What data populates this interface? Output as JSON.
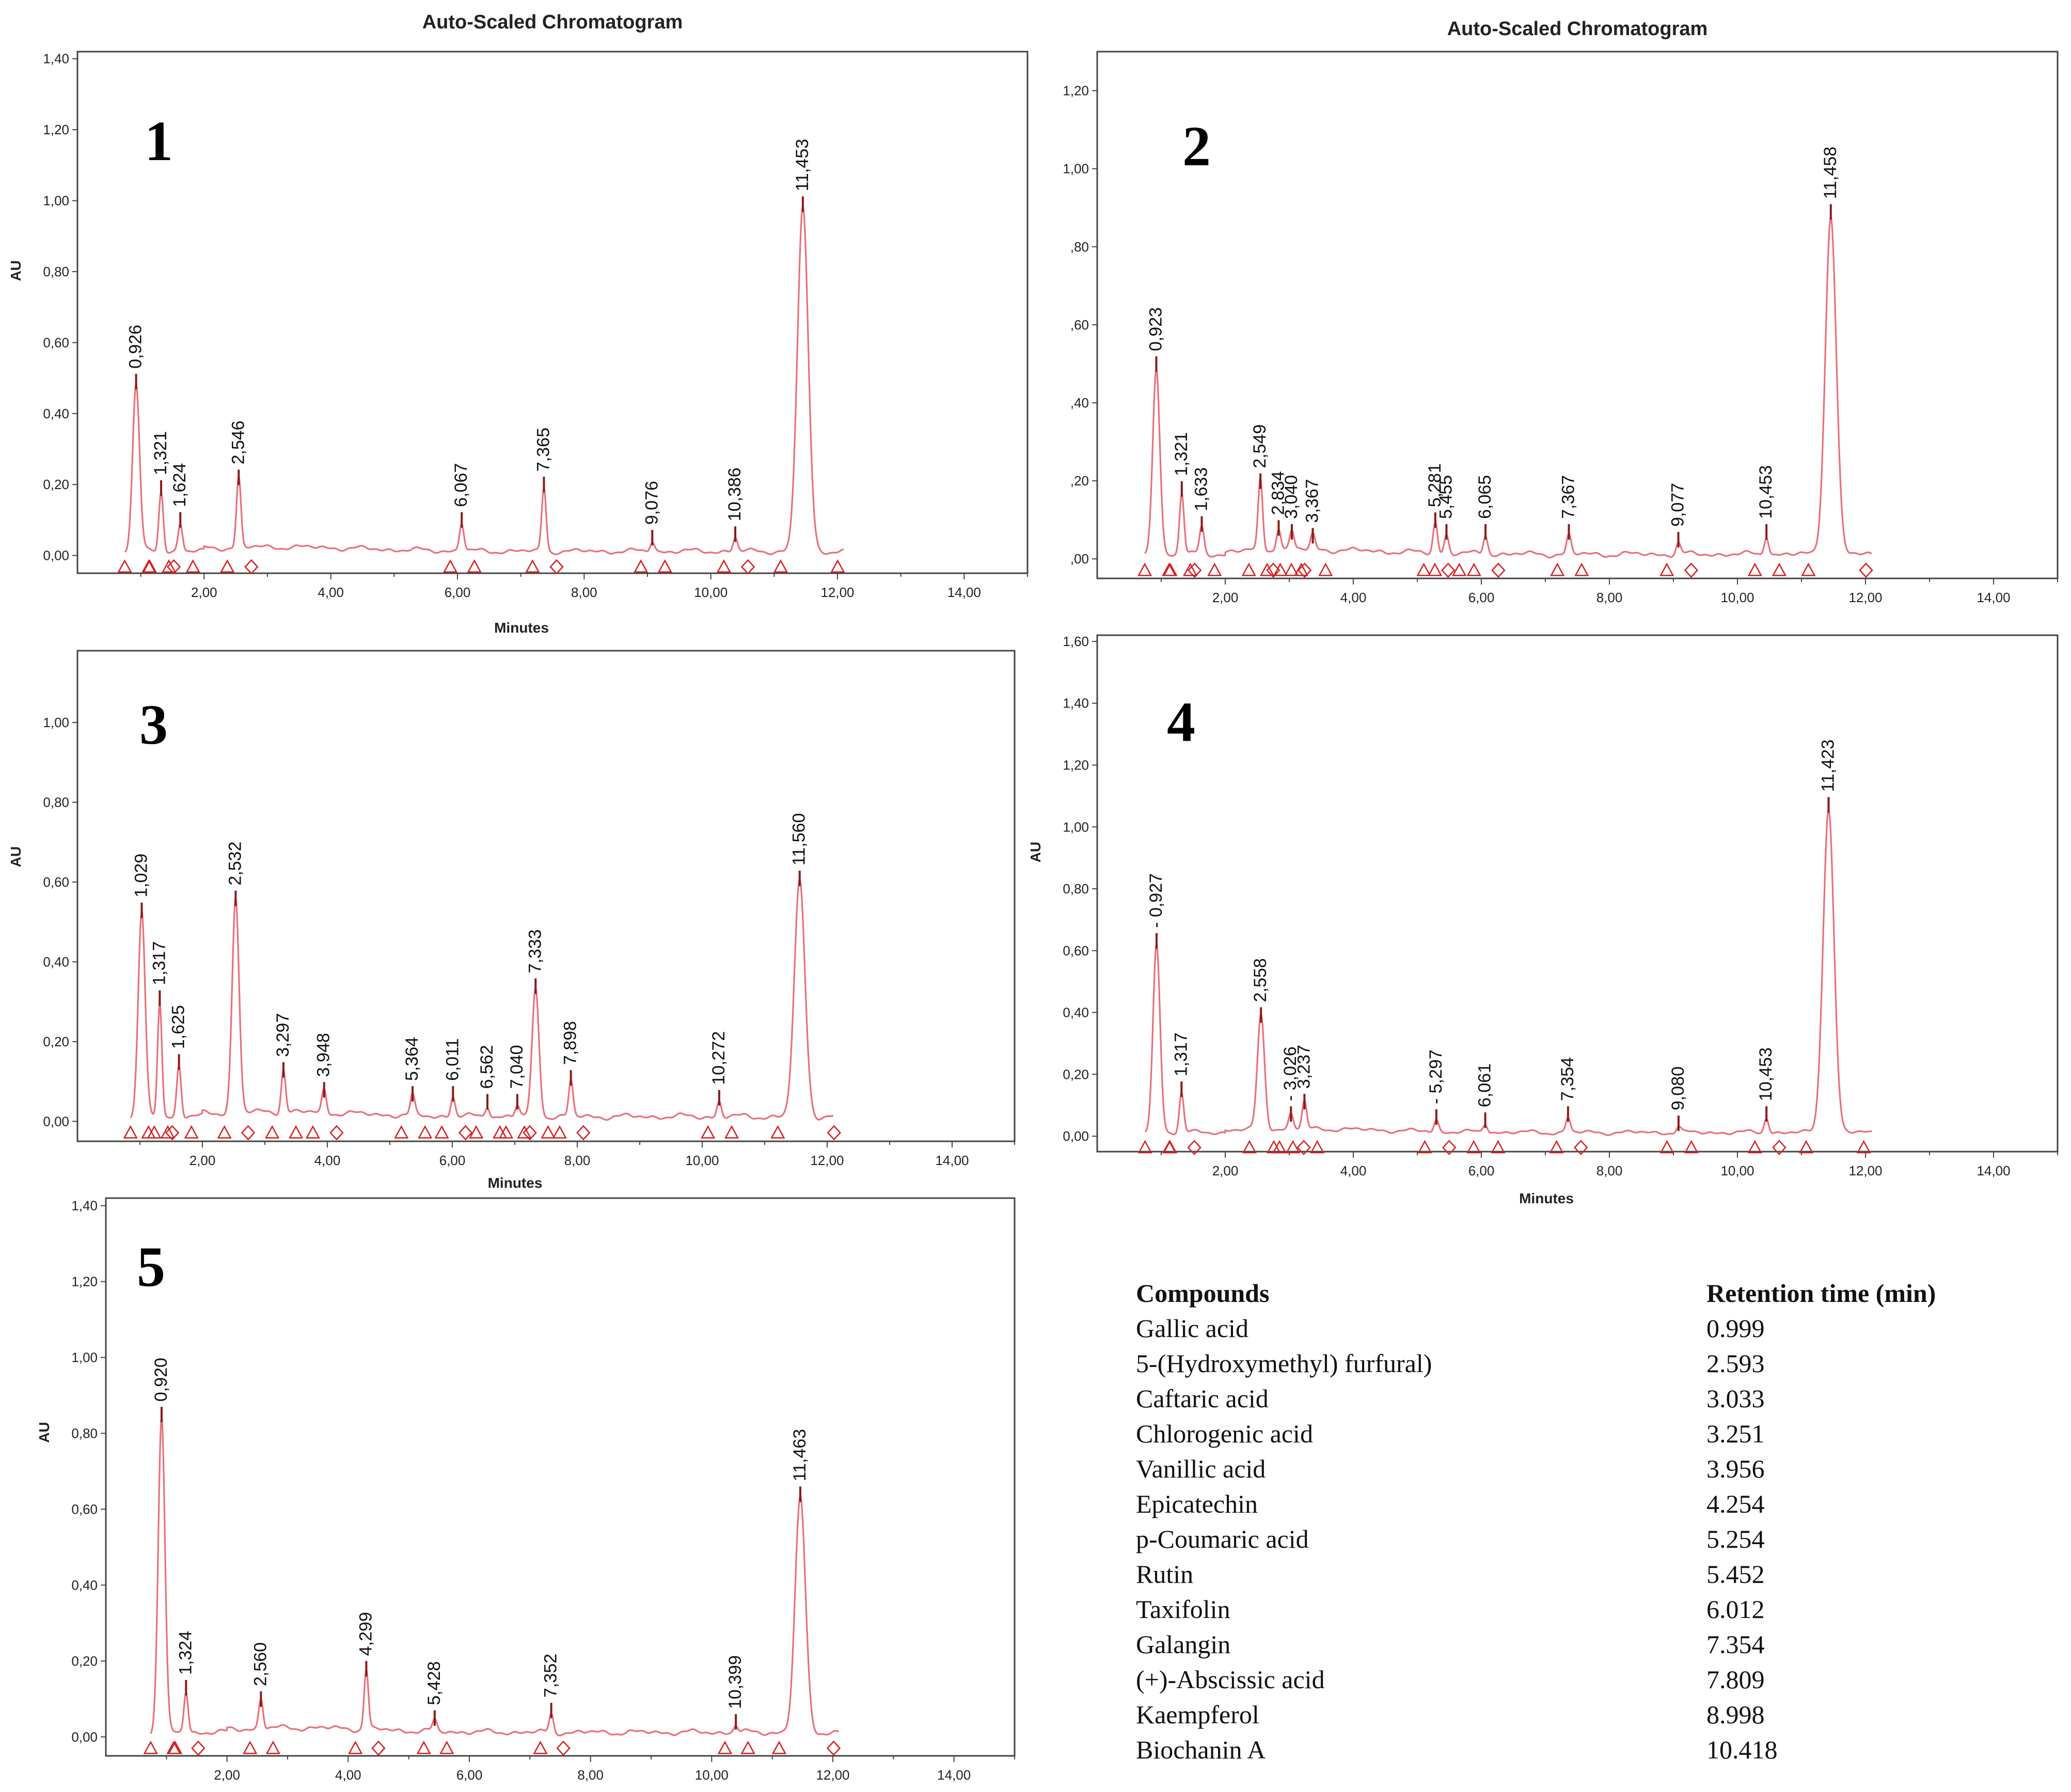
{
  "colors": {
    "trace": "#e8707a",
    "marker": "#d62020",
    "peak_tick": "#8a1a1a",
    "frame": "#444444"
  },
  "chart_data": [
    {
      "type": "line",
      "panel_label": "1",
      "title": "Auto-Scaled Chromatogram",
      "xlabel": "Minutes",
      "ylabel": "AU",
      "xlim": [
        0,
        15
      ],
      "ylim": [
        -0.05,
        1.42
      ],
      "xticks": [
        "2,00",
        "4,00",
        "6,00",
        "8,00",
        "10,00",
        "12,00",
        "14,00"
      ],
      "yticks": [
        "0,00",
        "0,20",
        "0,40",
        "0,60",
        "0,80",
        "1,00",
        "1,20",
        "1,40"
      ],
      "peaks": [
        {
          "rt": 0.926,
          "height": 0.48,
          "label": "0,926"
        },
        {
          "rt": 1.321,
          "height": 0.18,
          "label": "1,321"
        },
        {
          "rt": 1.624,
          "height": 0.09,
          "label": "1,624"
        },
        {
          "rt": 2.546,
          "height": 0.21,
          "label": "2,546"
        },
        {
          "rt": 6.067,
          "height": 0.09,
          "label": "6,067"
        },
        {
          "rt": 7.365,
          "height": 0.19,
          "label": "7,365"
        },
        {
          "rt": 9.076,
          "height": 0.04,
          "label": "9,076"
        },
        {
          "rt": 10.386,
          "height": 0.05,
          "label": "10,386"
        },
        {
          "rt": 11.453,
          "height": 0.98,
          "label": "11,453"
        }
      ]
    },
    {
      "type": "line",
      "panel_label": "2",
      "title": "Auto-Scaled Chromatogram",
      "xlabel": "",
      "ylabel": "",
      "xlim": [
        0,
        15
      ],
      "ylim": [
        -0.05,
        1.3
      ],
      "xticks": [
        "2,00",
        "4,00",
        "6,00",
        "8,00",
        "10,00",
        "12,00",
        "14,00"
      ],
      "yticks": [
        ",00",
        ",20",
        ",40",
        ",60",
        ",80",
        "1,00",
        "1,20"
      ],
      "peaks": [
        {
          "rt": 0.923,
          "height": 0.49,
          "label": "0,923"
        },
        {
          "rt": 1.321,
          "height": 0.17,
          "label": "1,321"
        },
        {
          "rt": 1.633,
          "height": 0.08,
          "label": "1,633"
        },
        {
          "rt": 2.549,
          "height": 0.19,
          "label": "2,549"
        },
        {
          "rt": 2.834,
          "height": 0.07,
          "label": "2,834"
        },
        {
          "rt": 3.04,
          "height": 0.06,
          "label": "3,040"
        },
        {
          "rt": 3.367,
          "height": 0.05,
          "label": "3,367"
        },
        {
          "rt": 5.281,
          "height": 0.09,
          "label": "5,281"
        },
        {
          "rt": 5.455,
          "height": 0.06,
          "label": "5,455"
        },
        {
          "rt": 6.065,
          "height": 0.06,
          "label": "6,065"
        },
        {
          "rt": 7.367,
          "height": 0.06,
          "label": "7,367"
        },
        {
          "rt": 9.077,
          "height": 0.04,
          "label": "9,077"
        },
        {
          "rt": 10.453,
          "height": 0.06,
          "label": "10,453"
        },
        {
          "rt": 11.458,
          "height": 0.88,
          "label": "11,458"
        }
      ]
    },
    {
      "type": "line",
      "panel_label": "3",
      "title": "",
      "xlabel": "Minutes",
      "ylabel": "AU",
      "xlim": [
        0,
        15
      ],
      "ylim": [
        -0.05,
        1.18
      ],
      "xticks": [
        "2,00",
        "4,00",
        "6,00",
        "8,00",
        "10,00",
        "12,00",
        "14,00"
      ],
      "yticks": [
        "0,00",
        "0,20",
        "0,40",
        "0,60",
        "0,80",
        "1,00"
      ],
      "peaks": [
        {
          "rt": 1.029,
          "height": 0.52,
          "label": "1,029"
        },
        {
          "rt": 1.317,
          "height": 0.3,
          "label": "1,317"
        },
        {
          "rt": 1.625,
          "height": 0.14,
          "label": "1,625"
        },
        {
          "rt": 2.532,
          "height": 0.55,
          "label": "2,532"
        },
        {
          "rt": 3.297,
          "height": 0.12,
          "label": "3,297"
        },
        {
          "rt": 3.948,
          "height": 0.07,
          "label": "3,948"
        },
        {
          "rt": 5.364,
          "height": 0.06,
          "label": "5,364"
        },
        {
          "rt": 6.011,
          "height": 0.06,
          "label": "6,011"
        },
        {
          "rt": 6.562,
          "height": 0.04,
          "label": "6,562"
        },
        {
          "rt": 7.04,
          "height": 0.04,
          "label": "7,040"
        },
        {
          "rt": 7.333,
          "height": 0.33,
          "label": "7,333"
        },
        {
          "rt": 7.898,
          "height": 0.1,
          "label": "7,898"
        },
        {
          "rt": 10.272,
          "height": 0.05,
          "label": "10,272"
        },
        {
          "rt": 11.56,
          "height": 0.6,
          "label": "11,560"
        }
      ]
    },
    {
      "type": "line",
      "panel_label": "4",
      "title": "",
      "xlabel": "Minutes",
      "ylabel": "AU",
      "xlim": [
        0,
        15
      ],
      "ylim": [
        -0.05,
        1.62
      ],
      "xticks": [
        "2,00",
        "4,00",
        "6,00",
        "8,00",
        "10,00",
        "12,00",
        "14,00"
      ],
      "yticks": [
        "0,00",
        "0,20",
        "0,40",
        "0,60",
        "0,80",
        "1,00",
        "1,20",
        "1,40",
        "1,60"
      ],
      "peaks": [
        {
          "rt": 0.927,
          "height": 0.62,
          "label": "- 0,927"
        },
        {
          "rt": 1.317,
          "height": 0.14,
          "label": "1,317"
        },
        {
          "rt": 2.558,
          "height": 0.38,
          "label": "2,558"
        },
        {
          "rt": 3.026,
          "height": 0.06,
          "label": "- 3,026"
        },
        {
          "rt": 3.237,
          "height": 0.1,
          "label": "3,237"
        },
        {
          "rt": 5.297,
          "height": 0.05,
          "label": "- 5,297"
        },
        {
          "rt": 6.061,
          "height": 0.04,
          "label": "6,061"
        },
        {
          "rt": 7.354,
          "height": 0.06,
          "label": "7,354"
        },
        {
          "rt": 9.08,
          "height": 0.03,
          "label": "9,080"
        },
        {
          "rt": 10.453,
          "height": 0.06,
          "label": "10,453"
        },
        {
          "rt": 11.423,
          "height": 1.06,
          "label": "11,423"
        }
      ]
    },
    {
      "type": "line",
      "panel_label": "5",
      "title": "",
      "xlabel": "",
      "ylabel": "AU",
      "xlim": [
        0,
        15
      ],
      "ylim": [
        -0.05,
        1.42
      ],
      "xticks": [
        "2,00",
        "4,00",
        "6,00",
        "8,00",
        "10,00",
        "12,00",
        "14,00"
      ],
      "yticks": [
        "0,00",
        "0,20",
        "0,40",
        "0,60",
        "0,80",
        "1,00",
        "1,20",
        "1,40"
      ],
      "peaks": [
        {
          "rt": 0.92,
          "height": 0.84,
          "label": "0,920"
        },
        {
          "rt": 1.324,
          "height": 0.12,
          "label": "1,324"
        },
        {
          "rt": 2.56,
          "height": 0.09,
          "label": "2,560"
        },
        {
          "rt": 4.299,
          "height": 0.17,
          "label": "4,299"
        },
        {
          "rt": 5.428,
          "height": 0.04,
          "label": "5,428"
        },
        {
          "rt": 7.352,
          "height": 0.06,
          "label": "7,352"
        },
        {
          "rt": 10.399,
          "height": 0.03,
          "label": "10,399"
        },
        {
          "rt": 11.463,
          "height": 0.63,
          "label": "11,463"
        }
      ]
    }
  ],
  "compound_table": {
    "headers": [
      "Compounds",
      "Retention time (min)"
    ],
    "rows": [
      {
        "compound": "Gallic acid",
        "rt": "0.999"
      },
      {
        "compound": "5-(Hydroxymethyl) furfural)",
        "rt": "2.593"
      },
      {
        "compound": "Caftaric acid",
        "rt": "3.033"
      },
      {
        "compound": "Chlorogenic acid",
        "rt": "3.251"
      },
      {
        "compound": "Vanillic acid",
        "rt": "3.956"
      },
      {
        "compound": "Epicatechin",
        "rt": "4.254"
      },
      {
        "compound": "p-Coumaric acid",
        "rt": "5.254"
      },
      {
        "compound": "Rutin",
        "rt": "5.452"
      },
      {
        "compound": "Taxifolin",
        "rt": "6.012"
      },
      {
        "compound": "Galangin",
        "rt": "7.354"
      },
      {
        "compound": "(+)-Abscissic acid",
        "rt": "7.809"
      },
      {
        "compound": "Kaempferol",
        "rt": "8.998"
      },
      {
        "compound": "Biochanin A",
        "rt": "10.418"
      }
    ]
  }
}
